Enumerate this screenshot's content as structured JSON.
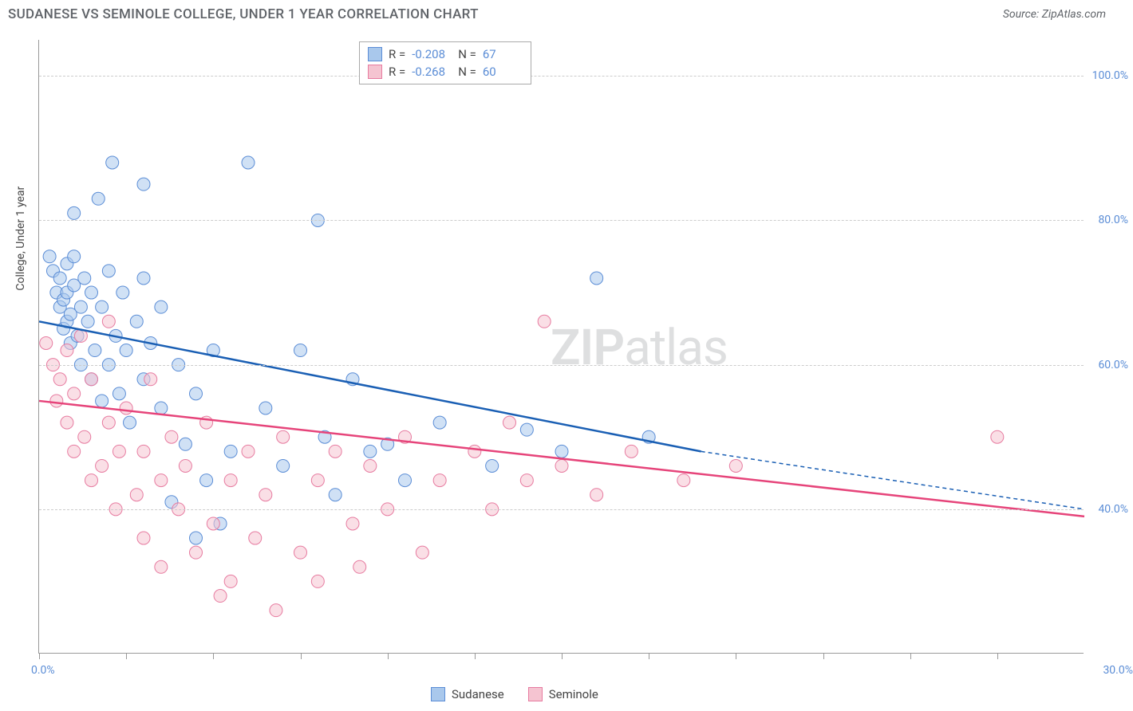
{
  "header": {
    "title": "SUDANESE VS SEMINOLE COLLEGE, UNDER 1 YEAR CORRELATION CHART",
    "source_prefix": "Source: ",
    "source_name": "ZipAtlas.com"
  },
  "watermark": {
    "zip": "ZIP",
    "atlas": "atlas"
  },
  "chart": {
    "type": "scatter",
    "xlim": [
      0,
      30
    ],
    "ylim": [
      20,
      105
    ],
    "x_ticks": [
      0,
      2.5,
      5,
      7.5,
      10,
      12.5,
      15,
      17.5,
      20,
      22.5,
      25,
      27.5
    ],
    "x_tick_labels": {
      "0": "0.0%",
      "30": "30.0%"
    },
    "y_gridlines": [
      40,
      60,
      80,
      100
    ],
    "y_tick_labels": {
      "40": "40.0%",
      "60": "60.0%",
      "80": "80.0%",
      "100": "100.0%"
    },
    "ylabel": "College, Under 1 year",
    "marker_radius": 8,
    "marker_opacity": 0.55,
    "trend_line_width": 2.5,
    "grid_color": "#cccccc",
    "axis_color": "#999999",
    "series": [
      {
        "name": "Sudanese",
        "fill_color": "#a9c8ec",
        "stroke_color": "#5b8dd6",
        "line_color": "#1a5fb4",
        "r_value": "-0.208",
        "n_value": "67",
        "trend": {
          "x1": 0,
          "y1": 66,
          "x2": 19,
          "y2": 48
        },
        "trend_ext": {
          "x1": 19,
          "y1": 48,
          "x2": 30,
          "y2": 40
        },
        "points": [
          [
            0.3,
            75
          ],
          [
            0.4,
            73
          ],
          [
            0.5,
            70
          ],
          [
            0.6,
            68
          ],
          [
            0.6,
            72
          ],
          [
            0.7,
            65
          ],
          [
            0.7,
            69
          ],
          [
            0.8,
            66
          ],
          [
            0.8,
            70
          ],
          [
            0.8,
            74
          ],
          [
            0.9,
            63
          ],
          [
            0.9,
            67
          ],
          [
            1.0,
            71
          ],
          [
            1.0,
            75
          ],
          [
            1.0,
            81
          ],
          [
            1.1,
            64
          ],
          [
            1.2,
            68
          ],
          [
            1.2,
            60
          ],
          [
            1.3,
            72
          ],
          [
            1.4,
            66
          ],
          [
            1.5,
            58
          ],
          [
            1.5,
            70
          ],
          [
            1.6,
            62
          ],
          [
            1.7,
            83
          ],
          [
            1.8,
            55
          ],
          [
            1.8,
            68
          ],
          [
            2.0,
            73
          ],
          [
            2.0,
            60
          ],
          [
            2.1,
            88
          ],
          [
            2.2,
            64
          ],
          [
            2.3,
            56
          ],
          [
            2.4,
            70
          ],
          [
            2.5,
            62
          ],
          [
            2.6,
            52
          ],
          [
            2.8,
            66
          ],
          [
            3.0,
            58
          ],
          [
            3.0,
            72
          ],
          [
            3.0,
            85
          ],
          [
            3.2,
            63
          ],
          [
            3.5,
            54
          ],
          [
            3.5,
            68
          ],
          [
            3.8,
            41
          ],
          [
            4.0,
            60
          ],
          [
            4.2,
            49
          ],
          [
            4.5,
            36
          ],
          [
            4.5,
            56
          ],
          [
            4.8,
            44
          ],
          [
            5.0,
            62
          ],
          [
            5.2,
            38
          ],
          [
            5.5,
            48
          ],
          [
            6.0,
            88
          ],
          [
            6.5,
            54
          ],
          [
            7.0,
            46
          ],
          [
            7.5,
            62
          ],
          [
            8.0,
            80
          ],
          [
            8.2,
            50
          ],
          [
            8.5,
            42
          ],
          [
            9.0,
            58
          ],
          [
            9.5,
            48
          ],
          [
            10.0,
            49
          ],
          [
            10.5,
            44
          ],
          [
            11.5,
            52
          ],
          [
            13.0,
            46
          ],
          [
            14.0,
            51
          ],
          [
            15.0,
            48
          ],
          [
            16.0,
            72
          ],
          [
            17.5,
            50
          ]
        ]
      },
      {
        "name": "Seminole",
        "fill_color": "#f5c4d1",
        "stroke_color": "#e77ba0",
        "line_color": "#e6447a",
        "r_value": "-0.268",
        "n_value": "60",
        "trend": {
          "x1": 0,
          "y1": 55,
          "x2": 30,
          "y2": 39
        },
        "points": [
          [
            0.2,
            63
          ],
          [
            0.4,
            60
          ],
          [
            0.5,
            55
          ],
          [
            0.6,
            58
          ],
          [
            0.8,
            52
          ],
          [
            0.8,
            62
          ],
          [
            1.0,
            48
          ],
          [
            1.0,
            56
          ],
          [
            1.2,
            64
          ],
          [
            1.3,
            50
          ],
          [
            1.5,
            44
          ],
          [
            1.5,
            58
          ],
          [
            1.8,
            46
          ],
          [
            2.0,
            66
          ],
          [
            2.0,
            52
          ],
          [
            2.2,
            40
          ],
          [
            2.3,
            48
          ],
          [
            2.5,
            54
          ],
          [
            2.8,
            42
          ],
          [
            3.0,
            36
          ],
          [
            3.0,
            48
          ],
          [
            3.2,
            58
          ],
          [
            3.5,
            44
          ],
          [
            3.5,
            32
          ],
          [
            3.8,
            50
          ],
          [
            4.0,
            40
          ],
          [
            4.2,
            46
          ],
          [
            4.5,
            34
          ],
          [
            4.8,
            52
          ],
          [
            5.0,
            38
          ],
          [
            5.2,
            28
          ],
          [
            5.5,
            44
          ],
          [
            5.5,
            30
          ],
          [
            6.0,
            48
          ],
          [
            6.2,
            36
          ],
          [
            6.5,
            42
          ],
          [
            6.8,
            26
          ],
          [
            7.0,
            50
          ],
          [
            7.5,
            34
          ],
          [
            8.0,
            44
          ],
          [
            8.0,
            30
          ],
          [
            8.5,
            48
          ],
          [
            9.0,
            38
          ],
          [
            9.2,
            32
          ],
          [
            9.5,
            46
          ],
          [
            10.0,
            40
          ],
          [
            10.5,
            50
          ],
          [
            11.0,
            34
          ],
          [
            11.5,
            44
          ],
          [
            12.5,
            48
          ],
          [
            13.0,
            40
          ],
          [
            13.5,
            52
          ],
          [
            14.0,
            44
          ],
          [
            14.5,
            66
          ],
          [
            15.0,
            46
          ],
          [
            16.0,
            42
          ],
          [
            17.0,
            48
          ],
          [
            18.5,
            44
          ],
          [
            20.0,
            46
          ],
          [
            27.5,
            50
          ]
        ]
      }
    ]
  },
  "legend_top": {
    "r_label": "R =",
    "n_label": "N ="
  },
  "legend_bottom": {
    "items": [
      "Sudanese",
      "Seminole"
    ]
  }
}
